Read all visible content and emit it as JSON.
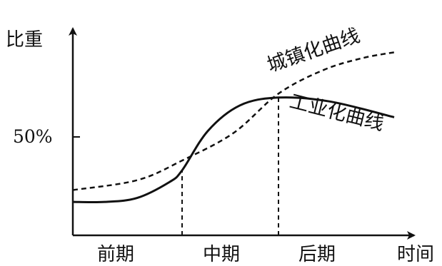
{
  "chart_data": {
    "type": "line",
    "ylabel": "比重",
    "xlabel": "时间",
    "y_tick_label": "50%",
    "stages": [
      "前期",
      "中期",
      "后期"
    ],
    "series": [
      {
        "name": "城镇化曲线",
        "style": "dashed",
        "color": "#111111",
        "points": [
          [
            0,
            0.23
          ],
          [
            0.2,
            0.28
          ],
          [
            0.34,
            0.38
          ],
          [
            0.5,
            0.52
          ],
          [
            0.64,
            0.72
          ],
          [
            0.78,
            0.84
          ],
          [
            0.9,
            0.9
          ],
          [
            1.0,
            0.93
          ]
        ]
      },
      {
        "name": "工业化曲线",
        "style": "solid",
        "color": "#111111",
        "points": [
          [
            0,
            0.17
          ],
          [
            0.1,
            0.17
          ],
          [
            0.2,
            0.19
          ],
          [
            0.3,
            0.27
          ],
          [
            0.34,
            0.33
          ],
          [
            0.42,
            0.53
          ],
          [
            0.52,
            0.66
          ],
          [
            0.64,
            0.7
          ],
          [
            0.8,
            0.68
          ],
          [
            1.0,
            0.6
          ]
        ]
      }
    ],
    "stage_boundaries": [
      0.34,
      0.64
    ],
    "y_ref": 0.5,
    "grid": false,
    "legend": "inline"
  }
}
